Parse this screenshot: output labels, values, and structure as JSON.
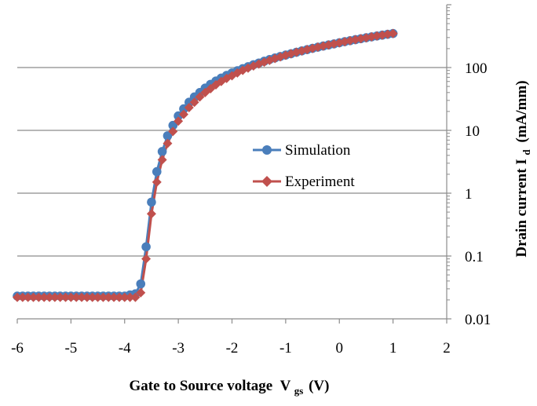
{
  "chart_data": {
    "type": "line",
    "x_axis": {
      "label": "Gate to Source voltage",
      "label_symbol": "V",
      "label_subscript": "gs",
      "label_unit": "(V)",
      "range": [
        -6,
        2
      ],
      "ticks": [
        "-6",
        "-5",
        "-4",
        "-3",
        "-2",
        "-1",
        "0",
        "1",
        "2"
      ]
    },
    "y_axis": {
      "label": "Drain current I",
      "label_subscript": "d",
      "label_unit": "(mA/mm)",
      "scale": "log",
      "position": "right",
      "range": [
        0.01,
        1000
      ],
      "ticks": [
        "0.01",
        "0.1",
        "1",
        "10",
        "100"
      ]
    },
    "grid": "horizontal major",
    "legend": {
      "placement": "center-right"
    },
    "series": [
      {
        "name": "Simulation",
        "color": "#4a7ebb",
        "marker": "circle",
        "points": [
          [
            -6.0,
            0.023
          ],
          [
            -5.9,
            0.023
          ],
          [
            -5.8,
            0.023
          ],
          [
            -5.7,
            0.023
          ],
          [
            -5.6,
            0.023
          ],
          [
            -5.5,
            0.023
          ],
          [
            -5.4,
            0.023
          ],
          [
            -5.3,
            0.023
          ],
          [
            -5.2,
            0.023
          ],
          [
            -5.1,
            0.023
          ],
          [
            -5.0,
            0.023
          ],
          [
            -4.9,
            0.023
          ],
          [
            -4.8,
            0.023
          ],
          [
            -4.7,
            0.023
          ],
          [
            -4.6,
            0.023
          ],
          [
            -4.5,
            0.023
          ],
          [
            -4.4,
            0.023
          ],
          [
            -4.3,
            0.023
          ],
          [
            -4.2,
            0.023
          ],
          [
            -4.1,
            0.023
          ],
          [
            -4.0,
            0.023
          ],
          [
            -3.9,
            0.024
          ],
          [
            -3.8,
            0.025
          ],
          [
            -3.7,
            0.036
          ],
          [
            -3.6,
            0.14
          ],
          [
            -3.5,
            0.72
          ],
          [
            -3.4,
            2.2
          ],
          [
            -3.3,
            4.6
          ],
          [
            -3.2,
            8.2
          ],
          [
            -3.1,
            12
          ],
          [
            -3.0,
            17
          ],
          [
            -2.9,
            22
          ],
          [
            -2.8,
            28
          ],
          [
            -2.7,
            34
          ],
          [
            -2.6,
            40
          ],
          [
            -2.5,
            47
          ],
          [
            -2.4,
            54
          ],
          [
            -2.3,
            61
          ],
          [
            -2.2,
            68
          ],
          [
            -2.1,
            75
          ],
          [
            -2.0,
            82
          ],
          [
            -1.9,
            89
          ],
          [
            -1.8,
            96
          ],
          [
            -1.7,
            103
          ],
          [
            -1.6,
            111
          ],
          [
            -1.5,
            118
          ],
          [
            -1.4,
            126
          ],
          [
            -1.3,
            134
          ],
          [
            -1.2,
            142
          ],
          [
            -1.1,
            150
          ],
          [
            -1.0,
            158
          ],
          [
            -0.9,
            166
          ],
          [
            -0.8,
            175
          ],
          [
            -0.7,
            184
          ],
          [
            -0.6,
            193
          ],
          [
            -0.5,
            202
          ],
          [
            -0.4,
            211
          ],
          [
            -0.3,
            220
          ],
          [
            -0.2,
            229
          ],
          [
            -0.1,
            238
          ],
          [
            0.0,
            248
          ],
          [
            0.1,
            258
          ],
          [
            0.2,
            268
          ],
          [
            0.3,
            278
          ],
          [
            0.4,
            288
          ],
          [
            0.5,
            298
          ],
          [
            0.6,
            308
          ],
          [
            0.7,
            318
          ],
          [
            0.8,
            328
          ],
          [
            0.9,
            338
          ],
          [
            1.0,
            348
          ]
        ]
      },
      {
        "name": "Experiment",
        "color": "#c0504d",
        "marker": "diamond",
        "points": [
          [
            -6.0,
            0.022
          ],
          [
            -5.9,
            0.022
          ],
          [
            -5.8,
            0.022
          ],
          [
            -5.7,
            0.022
          ],
          [
            -5.6,
            0.022
          ],
          [
            -5.5,
            0.022
          ],
          [
            -5.4,
            0.022
          ],
          [
            -5.3,
            0.022
          ],
          [
            -5.2,
            0.022
          ],
          [
            -5.1,
            0.022
          ],
          [
            -5.0,
            0.022
          ],
          [
            -4.9,
            0.022
          ],
          [
            -4.8,
            0.022
          ],
          [
            -4.7,
            0.022
          ],
          [
            -4.6,
            0.022
          ],
          [
            -4.5,
            0.022
          ],
          [
            -4.4,
            0.022
          ],
          [
            -4.3,
            0.022
          ],
          [
            -4.2,
            0.022
          ],
          [
            -4.1,
            0.022
          ],
          [
            -4.0,
            0.022
          ],
          [
            -3.9,
            0.022
          ],
          [
            -3.8,
            0.022
          ],
          [
            -3.7,
            0.026
          ],
          [
            -3.6,
            0.09
          ],
          [
            -3.5,
            0.47
          ],
          [
            -3.4,
            1.5
          ],
          [
            -3.3,
            3.4
          ],
          [
            -3.2,
            6.2
          ],
          [
            -3.1,
            9.6
          ],
          [
            -3.0,
            14
          ],
          [
            -2.9,
            18
          ],
          [
            -2.8,
            23
          ],
          [
            -2.7,
            28
          ],
          [
            -2.6,
            34
          ],
          [
            -2.5,
            40
          ],
          [
            -2.4,
            46
          ],
          [
            -2.3,
            53
          ],
          [
            -2.2,
            60
          ],
          [
            -2.1,
            67
          ],
          [
            -2.0,
            74
          ],
          [
            -1.9,
            82
          ],
          [
            -1.8,
            90
          ],
          [
            -1.7,
            98
          ],
          [
            -1.6,
            106
          ],
          [
            -1.5,
            114
          ],
          [
            -1.4,
            122
          ],
          [
            -1.3,
            130
          ],
          [
            -1.2,
            139
          ],
          [
            -1.1,
            148
          ],
          [
            -1.0,
            157
          ],
          [
            -0.9,
            166
          ],
          [
            -0.8,
            175
          ],
          [
            -0.7,
            184
          ],
          [
            -0.6,
            193
          ],
          [
            -0.5,
            202
          ],
          [
            -0.4,
            211
          ],
          [
            -0.3,
            220
          ],
          [
            -0.2,
            229
          ],
          [
            -0.1,
            238
          ],
          [
            0.0,
            248
          ],
          [
            0.1,
            258
          ],
          [
            0.2,
            268
          ],
          [
            0.3,
            278
          ],
          [
            0.4,
            288
          ],
          [
            0.5,
            298
          ],
          [
            0.6,
            308
          ],
          [
            0.7,
            318
          ],
          [
            0.8,
            328
          ],
          [
            0.9,
            338
          ],
          [
            1.0,
            348
          ]
        ]
      }
    ]
  }
}
